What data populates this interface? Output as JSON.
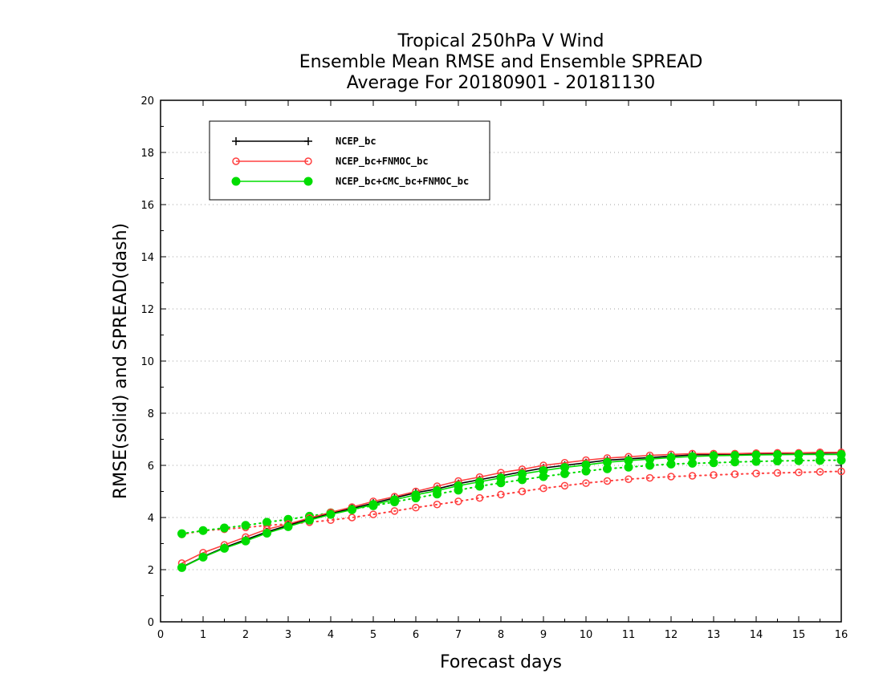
{
  "chart_data": {
    "type": "line",
    "title": [
      "Tropical 250hPa V Wind",
      "Ensemble Mean RMSE and Ensemble SPREAD",
      "Average For 20180901 - 20181130"
    ],
    "xlabel": "Forecast days",
    "ylabel": "RMSE(solid) and SPREAD(dash)",
    "xlim": [
      0,
      16
    ],
    "ylim": [
      0,
      20
    ],
    "xticks": [
      "0",
      "1",
      "2",
      "3",
      "4",
      "5",
      "6",
      "7",
      "8",
      "9",
      "10",
      "11",
      "12",
      "13",
      "14",
      "15",
      "16"
    ],
    "yticks": [
      "0",
      "2",
      "4",
      "6",
      "8",
      "10",
      "12",
      "14",
      "16",
      "18",
      "20"
    ],
    "grid": "horizontal dotted",
    "legend_position": "top-left",
    "x": [
      0.5,
      1,
      1.5,
      2,
      2.5,
      3,
      3.5,
      4,
      4.5,
      5,
      5.5,
      6,
      6.5,
      7,
      7.5,
      8,
      8.5,
      9,
      9.5,
      10,
      10.5,
      11,
      11.5,
      12,
      12.5,
      13,
      13.5,
      14,
      14.5,
      15,
      15.5,
      16
    ],
    "series": [
      {
        "name": "NCEP_bc",
        "style": "solid",
        "marker": "plus",
        "color": "#000000",
        "values": [
          2.1,
          2.5,
          2.85,
          3.15,
          3.45,
          3.7,
          3.95,
          4.15,
          4.35,
          4.55,
          4.75,
          4.95,
          5.1,
          5.3,
          5.45,
          5.6,
          5.75,
          5.9,
          6.0,
          6.1,
          6.2,
          6.25,
          6.3,
          6.35,
          6.4,
          6.42,
          6.42,
          6.44,
          6.45,
          6.46,
          6.47,
          6.48
        ]
      },
      {
        "name": "NCEP_bc+FNMOC_bc",
        "style": "solid",
        "marker": "open-circle",
        "color": "#ff4040",
        "values": [
          2.25,
          2.65,
          2.95,
          3.25,
          3.55,
          3.75,
          3.98,
          4.2,
          4.4,
          4.62,
          4.8,
          5.0,
          5.2,
          5.4,
          5.55,
          5.72,
          5.85,
          6.0,
          6.1,
          6.2,
          6.28,
          6.33,
          6.38,
          6.42,
          6.45,
          6.45,
          6.45,
          6.47,
          6.48,
          6.48,
          6.5,
          6.5
        ]
      },
      {
        "name": "NCEP_bc+CMC_bc+FNMOC_bc",
        "style": "solid",
        "marker": "filled-circle",
        "color": "#00dd00",
        "values": [
          2.08,
          2.48,
          2.82,
          3.1,
          3.4,
          3.65,
          3.9,
          4.12,
          4.3,
          4.5,
          4.68,
          4.87,
          5.03,
          5.22,
          5.37,
          5.52,
          5.67,
          5.8,
          5.92,
          6.02,
          6.12,
          6.18,
          6.24,
          6.3,
          6.34,
          6.37,
          6.38,
          6.4,
          6.41,
          6.42,
          6.42,
          6.42
        ]
      },
      {
        "name": "NCEP_bc+FNMOC_bc spread",
        "style": "dotted",
        "marker": "open-circle",
        "color": "#ff4040",
        "values": [
          3.35,
          3.5,
          3.55,
          3.62,
          3.7,
          3.75,
          3.82,
          3.9,
          4.0,
          4.12,
          4.25,
          4.38,
          4.5,
          4.62,
          4.75,
          4.88,
          5.0,
          5.12,
          5.22,
          5.32,
          5.4,
          5.47,
          5.52,
          5.57,
          5.6,
          5.63,
          5.66,
          5.69,
          5.71,
          5.73,
          5.75,
          5.77
        ]
      },
      {
        "name": "NCEP_bc+CMC_bc+FNMOC_bc spread",
        "style": "dotted",
        "marker": "filled-circle",
        "color": "#00dd00",
        "values": [
          3.38,
          3.5,
          3.6,
          3.7,
          3.82,
          3.93,
          4.05,
          4.18,
          4.32,
          4.45,
          4.6,
          4.75,
          4.9,
          5.05,
          5.2,
          5.33,
          5.45,
          5.57,
          5.68,
          5.78,
          5.87,
          5.93,
          6.0,
          6.05,
          6.08,
          6.1,
          6.13,
          6.15,
          6.17,
          6.18,
          6.19,
          6.2
        ]
      }
    ]
  }
}
